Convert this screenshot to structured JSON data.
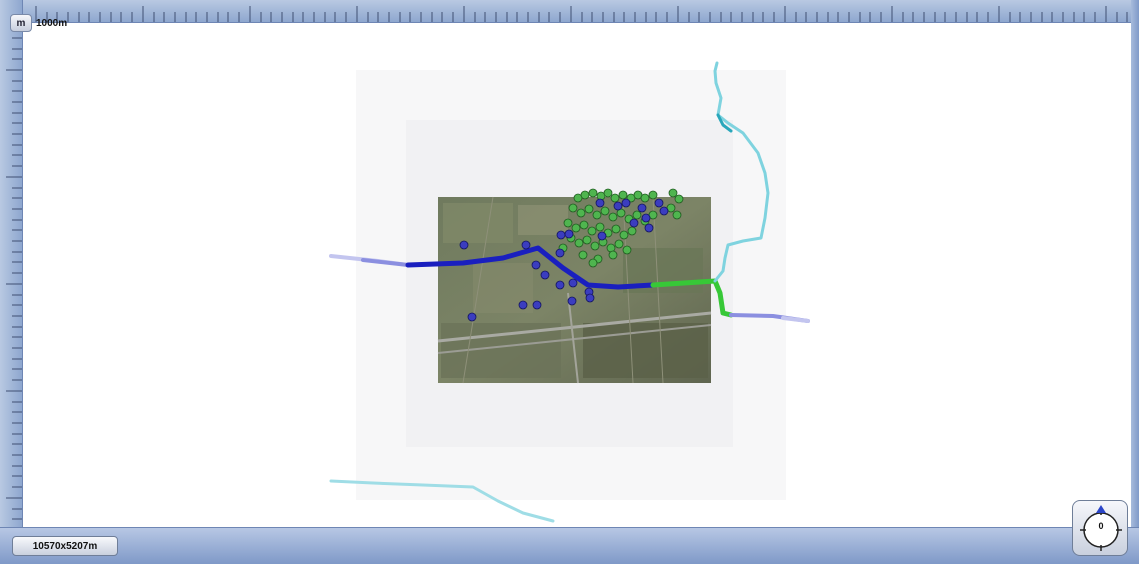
{
  "app": {
    "unit_button": "m",
    "scale_label": "1000m",
    "map_dimensions": "10570x5207m",
    "heading": "0"
  },
  "colors": {
    "chrome": "#8ea7cf",
    "track_blue": "#1a1fbf",
    "track_green": "#37c837",
    "track_cyan": "#7fd3df",
    "track_faded": "#8b8fe0",
    "waypoint_green": "#4fb54f",
    "waypoint_blue": "#3b3dbf"
  },
  "icons": {
    "compass": "compass-icon",
    "north_arrow": "north-arrow-icon"
  }
}
